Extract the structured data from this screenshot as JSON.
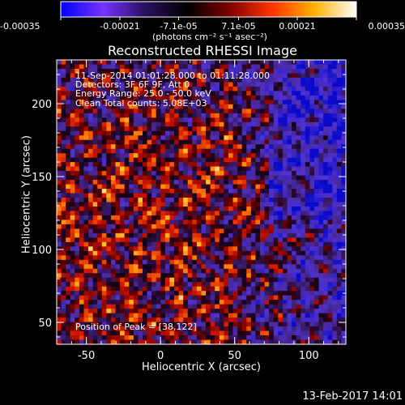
{
  "colorbar": {
    "ticks": [
      "-0.00035",
      "-0.00021",
      "-7.1e-05",
      "7.1e-05",
      "0.00021",
      "0.00035"
    ],
    "title": "(photons cm⁻² s⁻¹ asec⁻²)",
    "range": [
      -0.00035,
      0.00035
    ],
    "colors": [
      "#0000ff",
      "#7733ff",
      "#2a1060",
      "#000000",
      "#800000",
      "#ff3300",
      "#ffb000",
      "#ffffff"
    ]
  },
  "chart_data": {
    "type": "heatmap",
    "title": "Reconstructed RHESSI Image",
    "xlabel": "Heliocentric X (arcsec)",
    "ylabel": "Heliocentric Y (arcsec)",
    "xlim": [
      -70,
      125
    ],
    "ylim": [
      35,
      230
    ],
    "xticks": [
      -50,
      0,
      50,
      100
    ],
    "yticks": [
      50,
      100,
      150,
      200
    ],
    "annotations": [
      "11-Sep-2014 01:01:28.000 to 01:11:28.000",
      "Detectors: 3F 6F 9F, Att 0",
      "Energy Range: 25.0 - 50.0 keV",
      "Clean     Total counts: 5.08E+03"
    ],
    "peak_label": "Position of Peak = [38,122]",
    "peak_position": [
      38,
      122
    ],
    "grid_size": 64
  },
  "footer": {
    "date": "13-Feb-2017 14:01"
  }
}
